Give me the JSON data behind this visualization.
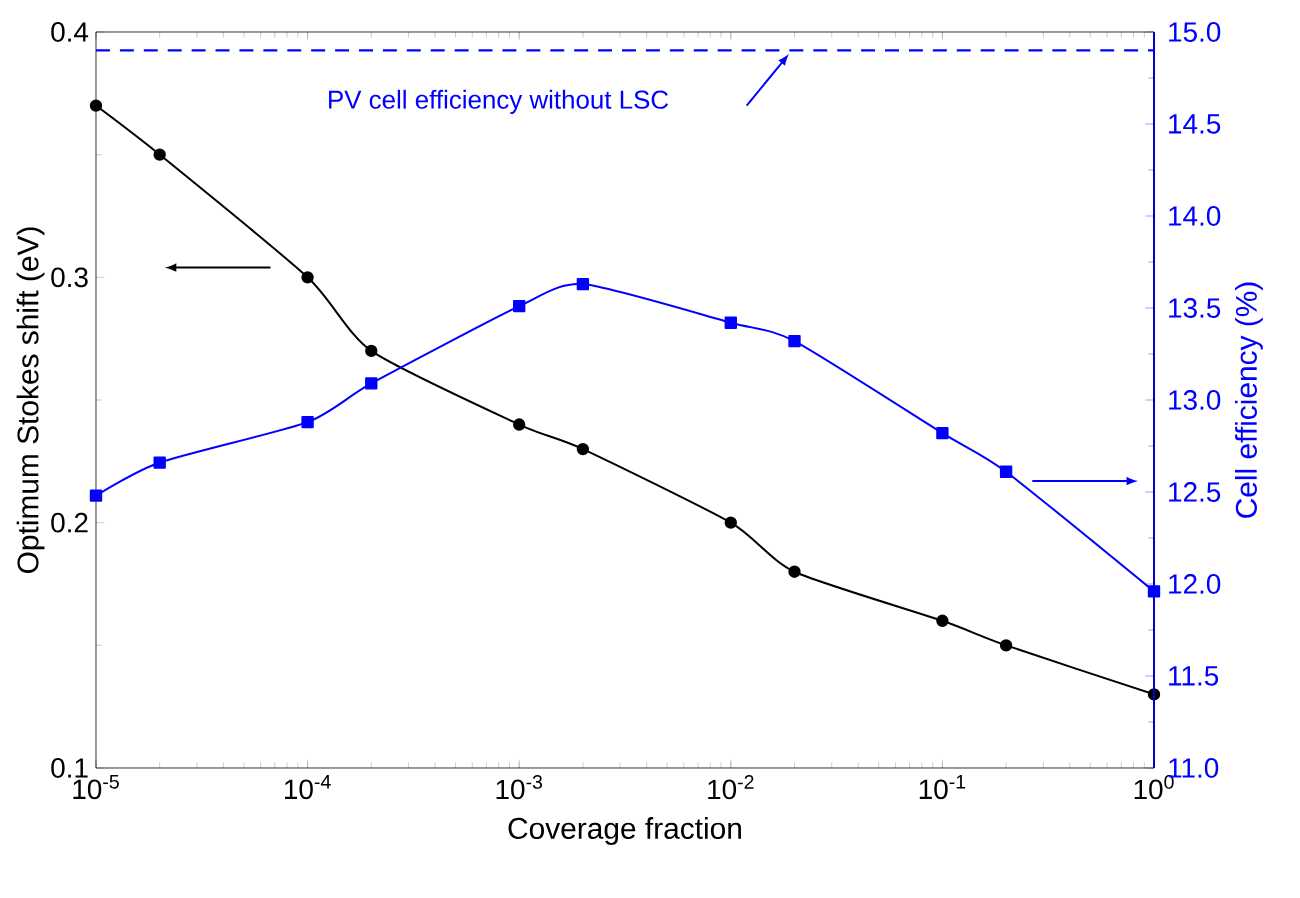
{
  "chart_data": {
    "type": "line",
    "xlabel": "Coverage fraction",
    "ylabel": "Optimum Stokes shift (eV)",
    "y2label": "Cell efficiency (%)",
    "x": [
      1e-05,
      2e-05,
      0.0001,
      0.0002,
      0.001,
      0.002,
      0.01,
      0.02,
      0.1,
      0.2,
      1
    ],
    "log": "x",
    "xlim": [
      1e-05,
      1
    ],
    "xticks": [
      {
        "value": 1e-05,
        "label": "10$^{-5}$"
      },
      {
        "value": 0.0001,
        "label": "10$^{-4}$"
      },
      {
        "value": 0.001,
        "label": "10$^{-3}$"
      },
      {
        "value": 0.01,
        "label": "10$^{-2}$"
      },
      {
        "value": 0.1,
        "label": "10$^{-1}$"
      },
      {
        "value": 1,
        "label": "10$^{0}$"
      }
    ],
    "ylim": [
      0.1,
      0.4
    ],
    "yticks": [
      0.1,
      0.2,
      0.3,
      0.4
    ],
    "y2lim": [
      11,
      15
    ],
    "y2ticks": [
      {
        "value": 11,
        "label": "11.0"
      },
      {
        "value": 11.5,
        "label": "11.5"
      },
      {
        "value": 12,
        "label": "12.0"
      },
      {
        "value": 12.5,
        "label": "12.5"
      },
      {
        "value": 13,
        "label": "13.0"
      },
      {
        "value": 13.5,
        "label": "13.5"
      },
      {
        "value": 14,
        "label": "14.0"
      },
      {
        "value": 14.5,
        "label": "14.5"
      },
      {
        "value": 15,
        "label": "15.0"
      }
    ],
    "series": [
      {
        "color": "#000000",
        "marker": "circle",
        "values": [
          0.37,
          0.35,
          0.3,
          0.27,
          0.24,
          0.23,
          0.2,
          0.18,
          0.16,
          0.15,
          0.13
        ]
      },
      {
        "color": "#0000ff",
        "marker": "square",
        "axis": "y2",
        "values": [
          12.48,
          12.66,
          12.88,
          13.09,
          13.51,
          13.63,
          13.42,
          13.32,
          12.82,
          12.61,
          11.96
        ]
      }
    ],
    "ref_lines": [
      {
        "axis": "y2",
        "value": 14.9,
        "label": "PV cell efficiency without LSC",
        "color": "#0000ff",
        "line_style": "dashed"
      }
    ],
    "grid": false,
    "legend": false
  }
}
